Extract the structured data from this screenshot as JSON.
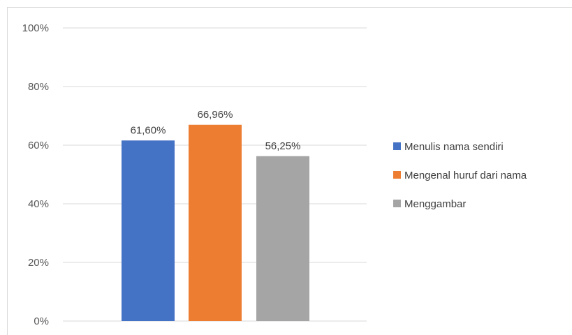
{
  "chart_data": {
    "type": "bar",
    "categories": [
      ""
    ],
    "series": [
      {
        "name": "Menulis nama sendiri",
        "values": [
          61.6
        ],
        "label": "61,60%",
        "color": "#4472C4"
      },
      {
        "name": "Mengenal huruf dari nama",
        "values": [
          66.96
        ],
        "label": "66,96%",
        "color": "#ED7D31"
      },
      {
        "name": "Menggambar",
        "values": [
          56.25
        ],
        "label": "56,25%",
        "color": "#A5A5A5"
      }
    ],
    "ylim": [
      0,
      100
    ],
    "yticks": [
      0,
      20,
      40,
      60,
      80,
      100
    ],
    "ytick_labels": [
      "0%",
      "20%",
      "40%",
      "60%",
      "80%",
      "100%"
    ],
    "grid": true,
    "legend_position": "right",
    "title": "",
    "xlabel": "",
    "ylabel": ""
  }
}
